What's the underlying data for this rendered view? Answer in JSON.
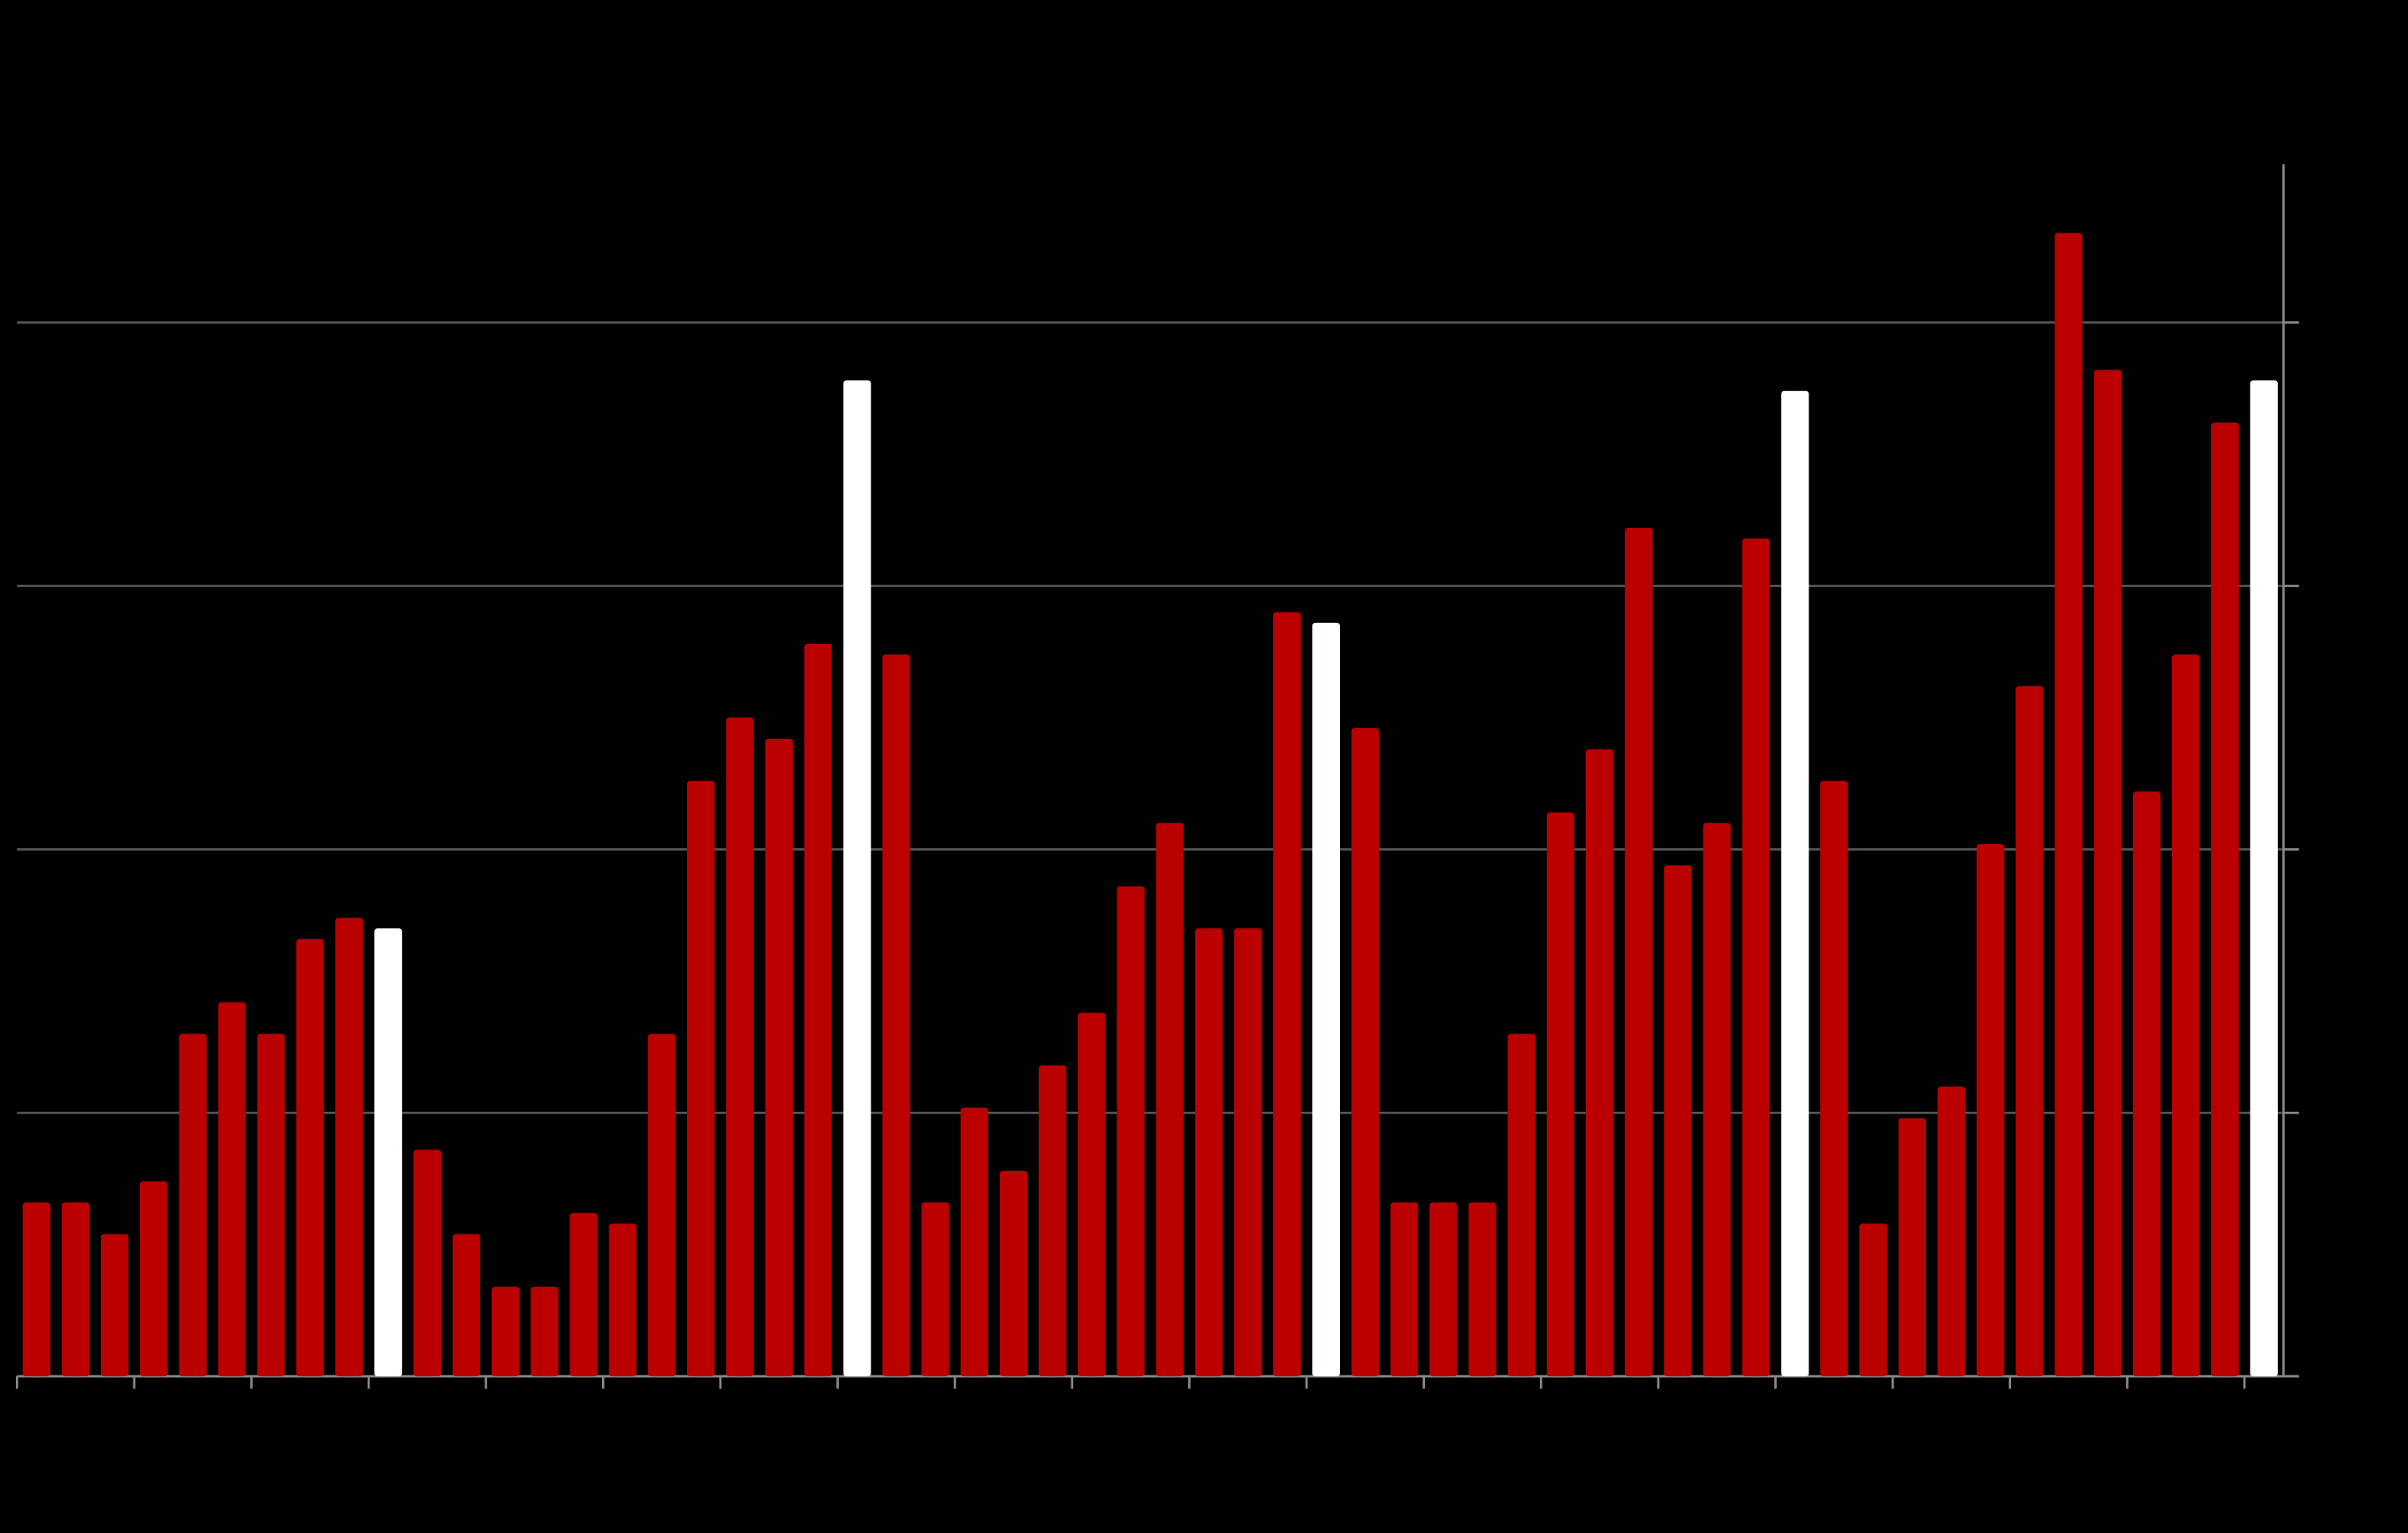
{
  "chart_data": {
    "type": "bar",
    "categories": [
      null,
      null,
      null,
      null,
      null,
      null,
      null,
      null,
      null,
      null,
      null,
      null,
      null,
      null,
      null,
      null,
      null,
      null,
      null,
      null,
      null,
      null,
      null,
      null,
      null,
      null,
      null,
      null,
      null,
      null,
      null,
      null,
      null,
      null,
      null,
      null,
      null,
      null,
      null,
      null,
      null,
      null,
      null,
      null,
      null,
      null,
      null,
      null,
      null,
      null,
      null,
      null,
      null,
      null,
      null,
      null,
      null,
      null
    ],
    "values": [
      0.66,
      0.66,
      0.54,
      0.74,
      1.3,
      1.42,
      1.3,
      1.66,
      1.74,
      1.7,
      0.86,
      0.54,
      0.34,
      0.34,
      0.62,
      0.58,
      1.3,
      2.26,
      2.5,
      2.42,
      2.78,
      3.78,
      2.74,
      0.66,
      1.02,
      0.78,
      1.18,
      1.38,
      1.86,
      2.1,
      1.7,
      1.7,
      2.9,
      2.86,
      2.46,
      0.66,
      0.66,
      0.66,
      1.3,
      2.14,
      2.38,
      3.22,
      1.94,
      2.1,
      3.18,
      3.74,
      2.26,
      0.58,
      0.98,
      1.1,
      2.02,
      2.62,
      4.34,
      3.82,
      2.22,
      2.74,
      3.62,
      3.78
    ],
    "colors": [
      "#bb0000",
      "#bb0000",
      "#bb0000",
      "#bb0000",
      "#bb0000",
      "#bb0000",
      "#bb0000",
      "#bb0000",
      "#bb0000",
      "#ffffff",
      "#bb0000",
      "#bb0000",
      "#bb0000",
      "#bb0000",
      "#bb0000",
      "#bb0000",
      "#bb0000",
      "#bb0000",
      "#bb0000",
      "#bb0000",
      "#bb0000",
      "#ffffff",
      "#bb0000",
      "#bb0000",
      "#bb0000",
      "#bb0000",
      "#bb0000",
      "#bb0000",
      "#bb0000",
      "#bb0000",
      "#bb0000",
      "#bb0000",
      "#bb0000",
      "#ffffff",
      "#bb0000",
      "#bb0000",
      "#bb0000",
      "#bb0000",
      "#bb0000",
      "#bb0000",
      "#bb0000",
      "#bb0000",
      "#bb0000",
      "#bb0000",
      "#bb0000",
      "#ffffff",
      "#bb0000",
      "#bb0000",
      "#bb0000",
      "#bb0000",
      "#bb0000",
      "#bb0000",
      "#bb0000",
      "#bb0000",
      "#bb0000",
      "#bb0000",
      "#bb0000",
      "#ffffff"
    ],
    "ylim": [
      0,
      4.6
    ],
    "yticks": [
      0,
      1,
      2,
      3,
      4
    ],
    "grid": true
  }
}
